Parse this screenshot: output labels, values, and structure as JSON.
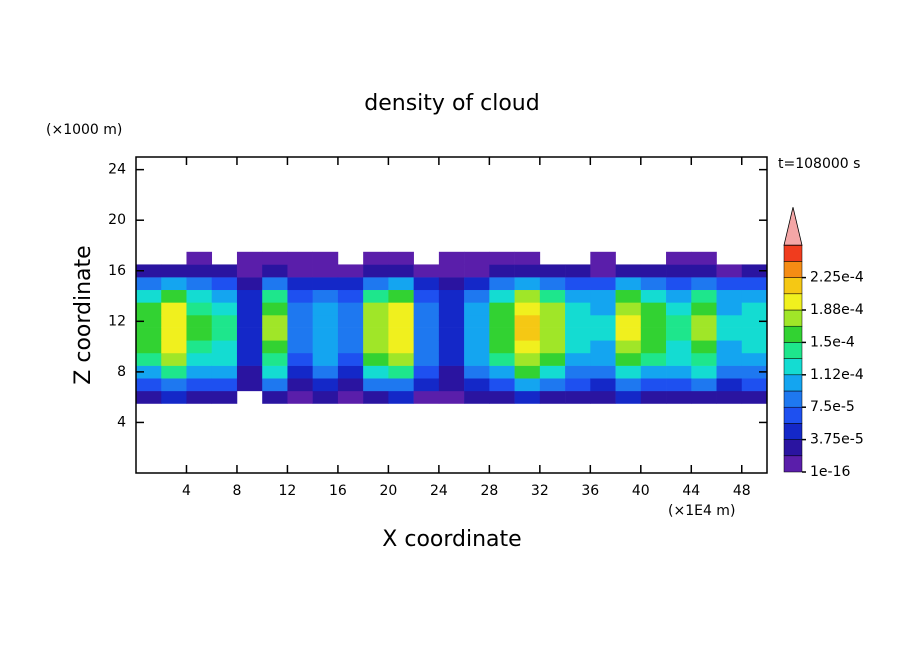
{
  "chart_data": {
    "type": "contour",
    "title": "density of cloud",
    "x_label": "X coordinate",
    "y_label": "Z coordinate",
    "x_unit": "(×1E4 m)",
    "y_unit": "(×1000 m)",
    "time_label": "t=108000 s",
    "xlim": [
      0,
      50
    ],
    "ylim": [
      0,
      25
    ],
    "xticks": [
      4,
      8,
      12,
      16,
      20,
      24,
      28,
      32,
      36,
      40,
      44,
      48
    ],
    "yticks": [
      4,
      8,
      12,
      16,
      20,
      24
    ],
    "x": [
      1,
      3,
      5,
      7,
      9,
      11,
      13,
      15,
      17,
      19,
      21,
      23,
      25,
      27,
      29,
      31,
      33,
      35,
      37,
      39,
      41,
      43,
      45,
      47,
      49
    ],
    "y": [
      6,
      7,
      8,
      9,
      10,
      11,
      12,
      13,
      14,
      15,
      16,
      17
    ],
    "values": [
      [
        3.2e-05,
        7.2e-05,
        0.00011,
        0.00014,
        0.00015,
        0.00016,
        0.00016,
        0.00015,
        0.00013,
        8e-05,
        2.4e-05,
        null
      ],
      [
        4e-05,
        9e-05,
        0.00014,
        0.00017,
        0.00019,
        0.0002,
        0.0002,
        0.00019,
        0.00016,
        0.0001,
        3e-05,
        null
      ],
      [
        3e-05,
        6.8e-05,
        0.00011,
        0.00013,
        0.00014,
        0.00015,
        0.00015,
        0.00014,
        0.00012,
        7.5e-05,
        2.2e-05,
        5e-06
      ],
      [
        2.8e-05,
        6.3e-05,
        9.8e-05,
        0.00012,
        0.00013,
        0.00014,
        0.00014,
        0.00013,
        0.00011,
        7e-05,
        2.1e-05,
        null
      ],
      [
        null,
        2.2e-05,
        3.5e-05,
        4.2e-05,
        4.8e-05,
        5e-05,
        5e-05,
        4.8e-05,
        4e-05,
        2.5e-05,
        8e-06,
        5e-06
      ],
      [
        3.4e-05,
        7.6e-05,
        0.00012,
        0.00014,
        0.00016,
        0.00017,
        0.00017,
        0.00016,
        0.00014,
        8.5e-05,
        2.6e-05,
        5e-06
      ],
      [
        1.6e-05,
        3.6e-05,
        5.6e-05,
        6.8e-05,
        7.6e-05,
        8e-05,
        8e-05,
        7.6e-05,
        6.4e-05,
        4e-05,
        1.2e-05,
        5e-06
      ],
      [
        2.2e-05,
        5e-05,
        7.7e-05,
        9.4e-05,
        0.0001,
        0.00011,
        0.00011,
        0.0001,
        8.8e-05,
        5.5e-05,
        1.7e-05,
        5e-06
      ],
      [
        1.6e-05,
        3.6e-05,
        5.6e-05,
        6.8e-05,
        7.6e-05,
        8e-05,
        8e-05,
        7.6e-05,
        6.4e-05,
        4e-05,
        1.2e-05,
        null
      ],
      [
        3.6e-05,
        8.1e-05,
        0.00013,
        0.00015,
        0.00017,
        0.00018,
        0.00018,
        0.00017,
        0.00014,
        9e-05,
        2.7e-05,
        5e-06
      ],
      [
        4e-05,
        9e-05,
        0.00014,
        0.00017,
        0.00019,
        0.0002,
        0.0002,
        0.00019,
        0.00016,
        0.0001,
        3e-05,
        5e-06
      ],
      [
        1.8e-05,
        4e-05,
        6.3e-05,
        7.7e-05,
        8.6e-05,
        9e-05,
        9e-05,
        8.6e-05,
        7.2e-05,
        4.5e-05,
        1.4e-05,
        null
      ],
      [
        1e-05,
        2.2e-05,
        3.5e-05,
        4.2e-05,
        4.8e-05,
        5e-05,
        5e-05,
        4.8e-05,
        4e-05,
        2.5e-05,
        8e-06,
        5e-06
      ],
      [
        2.2e-05,
        5e-05,
        7.7e-05,
        9.4e-05,
        0.0001,
        0.00011,
        0.00011,
        0.0001,
        8.8e-05,
        5.5e-05,
        1.7e-05,
        5e-06
      ],
      [
        3.2e-05,
        7.2e-05,
        0.00011,
        0.00014,
        0.00015,
        0.00016,
        0.00016,
        0.00015,
        0.00013,
        8e-05,
        2.4e-05,
        5e-06
      ],
      [
        4.2e-05,
        9.5e-05,
        0.00015,
        0.00018,
        0.0002,
        0.00021,
        0.00021,
        0.0002,
        0.00017,
        0.00011,
        3.2e-05,
        5e-06
      ],
      [
        3.6e-05,
        8.1e-05,
        0.00013,
        0.00015,
        0.00017,
        0.00018,
        0.00018,
        0.00017,
        0.00014,
        9e-05,
        2.7e-05,
        null
      ],
      [
        2.6e-05,
        5.9e-05,
        9.1e-05,
        0.00011,
        0.00012,
        0.00013,
        0.00013,
        0.00012,
        0.0001,
        6.5e-05,
        2e-05,
        null
      ],
      [
        2.4e-05,
        5.4e-05,
        8.4e-05,
        0.0001,
        0.00011,
        0.00012,
        0.00012,
        0.00011,
        9.6e-05,
        6e-05,
        1.8e-05,
        5e-06
      ],
      [
        3.8e-05,
        8.6e-05,
        0.00013,
        0.00016,
        0.00018,
        0.00019,
        0.00019,
        0.00018,
        0.00015,
        9.5e-05,
        2.9e-05,
        null
      ],
      [
        3.2e-05,
        7.2e-05,
        0.00011,
        0.00014,
        0.00015,
        0.00016,
        0.00016,
        0.00015,
        0.00013,
        8e-05,
        2.4e-05,
        null
      ],
      [
        2.8e-05,
        6.3e-05,
        9.8e-05,
        0.00012,
        0.00013,
        0.00014,
        0.00014,
        0.00013,
        0.00011,
        7e-05,
        2.1e-05,
        5e-06
      ],
      [
        3.4e-05,
        7.6e-05,
        0.00012,
        0.00014,
        0.00016,
        0.00017,
        0.00017,
        0.00016,
        0.00014,
        8.5e-05,
        2.6e-05,
        5e-06
      ],
      [
        2.4e-05,
        5.4e-05,
        8.4e-05,
        0.0001,
        0.00011,
        0.00012,
        0.00012,
        0.00011,
        9.6e-05,
        6e-05,
        1.8e-05,
        null
      ],
      [
        2.6e-05,
        5.9e-05,
        9.1e-05,
        0.00011,
        0.00012,
        0.00013,
        0.00013,
        0.00012,
        0.0001,
        6.5e-05,
        2e-05,
        null
      ]
    ],
    "colorbar": {
      "levels": [
        1e-16,
        1.875e-05,
        3.75e-05,
        5.625e-05,
        7.5e-05,
        9.375e-05,
        0.0001125,
        0.00013125,
        0.00015,
        0.00016875,
        0.0001875,
        0.00020625,
        0.000225,
        0.00024375
      ],
      "colors": [
        "#5a1eaa",
        "#2a14a0",
        "#1428c8",
        "#1e50f0",
        "#1e78f0",
        "#14a5f0",
        "#14dcd2",
        "#1ee68c",
        "#32d232",
        "#a0e628",
        "#f0f01e",
        "#f5c814",
        "#f58c14",
        "#f03c1e"
      ],
      "extend_color": "#f4a6a6",
      "ticks": [
        {
          "value": 1e-16,
          "label": "1e-16"
        },
        {
          "value": 3.75e-05,
          "label": "3.75e-5"
        },
        {
          "value": 7.5e-05,
          "label": "7.5e-5"
        },
        {
          "value": 0.0001125,
          "label": "1.12e-4"
        },
        {
          "value": 0.00015,
          "label": "1.5e-4"
        },
        {
          "value": 0.0001875,
          "label": "1.88e-4"
        },
        {
          "value": 0.000225,
          "label": "2.25e-4"
        }
      ]
    }
  }
}
